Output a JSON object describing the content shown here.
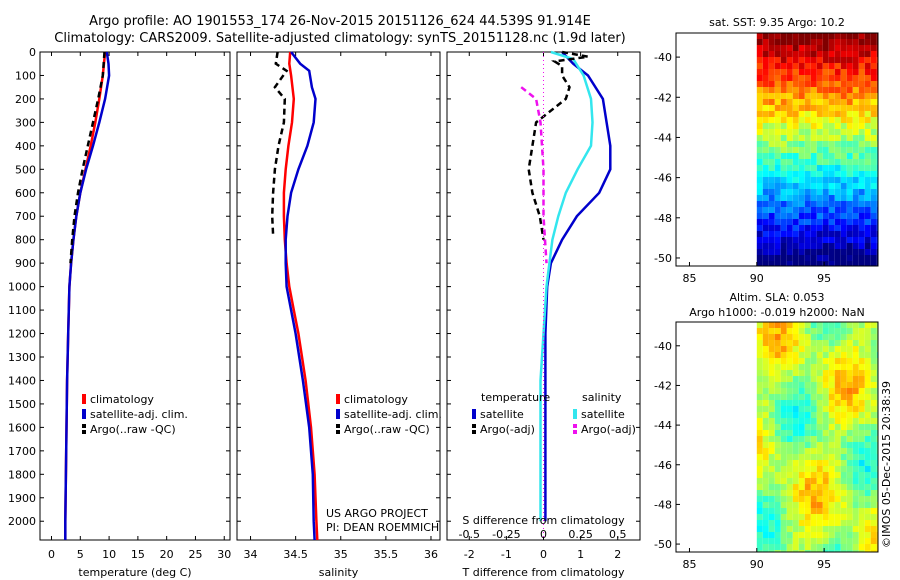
{
  "title_line1": "Argo profile: AO 1901553_174 26-Nov-2015 20151126_624 44.539S 91.914E",
  "title_line2": "Climatology: CARS2009. Satellite-adjusted climatology: synTS_20151128.nc (1.9d later)",
  "colors": {
    "red": "#ff0000",
    "blue": "#0000cc",
    "black": "#000000",
    "cyan": "#33e6ee",
    "magenta": "#ee11ee"
  },
  "chart_data": [
    {
      "type": "line",
      "name": "temperature-profile",
      "xlabel": "temperature (deg C)",
      "xlim": [
        -2,
        31
      ],
      "ylim": [
        2080,
        0
      ],
      "xticks": [
        0,
        5,
        10,
        15,
        20,
        25,
        30
      ],
      "yticks": [
        0,
        100,
        200,
        300,
        400,
        500,
        600,
        700,
        800,
        900,
        1000,
        1100,
        1200,
        1300,
        1400,
        1500,
        1600,
        1700,
        1800,
        1900,
        2000
      ],
      "legend": [
        "climatology",
        "satellite-adj. clim.",
        "Argo(..raw -QC)"
      ],
      "series": [
        {
          "name": "climatology",
          "color": "red",
          "depth": [
            0,
            100,
            200,
            300,
            400,
            500,
            600,
            700,
            800,
            900,
            1000,
            1200,
            1400,
            1600,
            1800,
            2000,
            2080
          ],
          "values": [
            9.3,
            8.9,
            8.3,
            7.6,
            6.8,
            5.9,
            5.0,
            4.3,
            3.8,
            3.4,
            3.1,
            2.9,
            2.7,
            2.6,
            2.5,
            2.4,
            2.4
          ]
        },
        {
          "name": "satellite-adj. clim.",
          "color": "blue",
          "depth": [
            0,
            50,
            100,
            200,
            300,
            400,
            500,
            600,
            700,
            800,
            900,
            1000,
            1200,
            1400,
            1600,
            1800,
            2000,
            2080
          ],
          "values": [
            9.6,
            9.9,
            10.0,
            9.3,
            8.3,
            7.2,
            6.0,
            5.0,
            4.3,
            3.8,
            3.4,
            3.1,
            2.9,
            2.7,
            2.6,
            2.5,
            2.4,
            2.4
          ]
        },
        {
          "name": "Argo(..raw -QC)",
          "color": "black",
          "style": "dashed",
          "depth": [
            0,
            100,
            200,
            300,
            400,
            500,
            600,
            700,
            800,
            900
          ],
          "values": [
            9.2,
            8.9,
            8.1,
            7.2,
            6.3,
            5.4,
            4.6,
            4.0,
            3.6,
            3.3
          ]
        }
      ]
    },
    {
      "type": "line",
      "name": "salinity-profile",
      "xlabel": "salinity",
      "xlim": [
        33.85,
        36.1
      ],
      "ylim": [
        2080,
        0
      ],
      "xticks": [
        34,
        34.5,
        35,
        35.5,
        36
      ],
      "legend": [
        "climatology",
        "satellite-adj. clim.",
        "Argo(..raw -QC)"
      ],
      "series": [
        {
          "name": "climatology",
          "color": "red",
          "depth": [
            0,
            50,
            100,
            200,
            300,
            400,
            500,
            600,
            700,
            800,
            900,
            1000,
            1100,
            1200,
            1300,
            1400,
            1500,
            1600,
            1700,
            1800,
            1900,
            2000,
            2080
          ],
          "values": [
            34.44,
            34.43,
            34.45,
            34.48,
            34.46,
            34.42,
            34.39,
            34.37,
            34.37,
            34.38,
            34.4,
            34.43,
            34.48,
            34.53,
            34.57,
            34.61,
            34.64,
            34.67,
            34.69,
            34.71,
            34.72,
            34.73,
            34.74
          ]
        },
        {
          "name": "satellite-adj. clim.",
          "color": "blue",
          "depth": [
            0,
            50,
            80,
            150,
            200,
            300,
            400,
            500,
            600,
            700,
            800,
            900,
            1000,
            1200,
            1400,
            1600,
            1800,
            2000,
            2080
          ],
          "values": [
            34.45,
            34.55,
            34.65,
            34.68,
            34.72,
            34.7,
            34.63,
            34.53,
            34.45,
            34.41,
            34.39,
            34.39,
            34.4,
            34.5,
            34.58,
            34.65,
            34.69,
            34.7,
            34.71
          ]
        },
        {
          "name": "Argo(..raw -QC)",
          "color": "black",
          "style": "dashed",
          "depth": [
            0,
            50,
            80,
            150,
            200,
            300,
            400,
            500,
            600,
            700,
            780
          ],
          "values": [
            34.3,
            34.28,
            34.4,
            34.27,
            34.38,
            34.37,
            34.31,
            34.27,
            34.25,
            34.24,
            34.25
          ]
        }
      ]
    },
    {
      "type": "line",
      "name": "difference-profile",
      "xlabel": "T difference from climatology",
      "x2label": "S difference from climatology",
      "xlim": [
        -2.6,
        2.6
      ],
      "x2lim": [
        -0.65,
        0.65
      ],
      "ylim": [
        2080,
        0
      ],
      "xticks": [
        -2,
        -1,
        0,
        1,
        2
      ],
      "x2ticks": [
        -0.5,
        -0.25,
        0,
        0.25,
        0.5
      ],
      "legend_headers": [
        "temperature",
        "salinity"
      ],
      "legend": [
        "satellite",
        "Argo(-adj)",
        "satellite",
        "Argo(-adj)"
      ],
      "series": [
        {
          "name": "temperature satellite",
          "color": "blue",
          "depth": [
            0,
            50,
            100,
            200,
            300,
            400,
            500,
            600,
            700,
            800,
            850,
            900,
            1000,
            1200,
            1400,
            1600,
            1800,
            2000
          ],
          "values": [
            0.5,
            0.8,
            1.2,
            1.6,
            1.7,
            1.8,
            1.8,
            1.5,
            0.9,
            0.5,
            0.35,
            0.2,
            0.1,
            0.05,
            0.05,
            0.05,
            0.05,
            0.05
          ]
        },
        {
          "name": "salinity satellite",
          "color": "cyan",
          "depth": [
            0,
            30,
            100,
            200,
            300,
            400,
            500,
            600,
            700,
            800,
            900,
            1000,
            1200,
            1400,
            1600,
            1800,
            2000
          ],
          "values": [
            0.05,
            0.2,
            0.27,
            0.32,
            0.33,
            0.32,
            0.23,
            0.15,
            0.1,
            0.06,
            0.04,
            0.02,
            0.0,
            -0.02,
            -0.02,
            -0.02,
            -0.02
          ]
        },
        {
          "name": "temperature Argo(-adj)",
          "color": "black",
          "style": "dashed",
          "depth": [
            0,
            20,
            40,
            60,
            100,
            150,
            200,
            300,
            400,
            500,
            600,
            700,
            800
          ],
          "values": [
            0.5,
            1.2,
            0.3,
            0.5,
            0.5,
            0.7,
            0.6,
            -0.2,
            -0.3,
            -0.4,
            -0.3,
            -0.1,
            0.0
          ]
        },
        {
          "name": "salinity Argo(-adj)",
          "color": "magenta",
          "style": "dashed",
          "depth": [
            150,
            200,
            300,
            400,
            500,
            600,
            700,
            800,
            900
          ],
          "values": [
            -0.15,
            -0.05,
            -0.02,
            -0.01,
            0.0,
            0.0,
            0.0,
            0.01,
            0.02
          ]
        }
      ]
    },
    {
      "type": "heatmap",
      "name": "sst-map",
      "title": "sat. SST: 9.35 Argo: 10.2",
      "xlim": [
        84,
        99
      ],
      "ylim": [
        -50.4,
        -38.8
      ],
      "xticks": [
        85,
        90,
        95
      ],
      "yticks": [
        -40,
        -42,
        -44,
        -46,
        -48,
        -50
      ]
    },
    {
      "type": "heatmap",
      "name": "sla-map",
      "title_line1": "Altim. SLA: 0.053",
      "title_line2": "Argo h1000: -0.019 h2000: NaN",
      "xlim": [
        84,
        99
      ],
      "ylim": [
        -50.4,
        -38.8
      ],
      "xticks": [
        85,
        90,
        95
      ],
      "yticks": [
        -40,
        -42,
        -44,
        -46,
        -48,
        -50
      ]
    }
  ],
  "footer_left1": "US ARGO PROJECT",
  "footer_left2": "PI: DEAN ROEMMICH",
  "credit": "©IMOS 05-Dec-2015 20:38:39"
}
